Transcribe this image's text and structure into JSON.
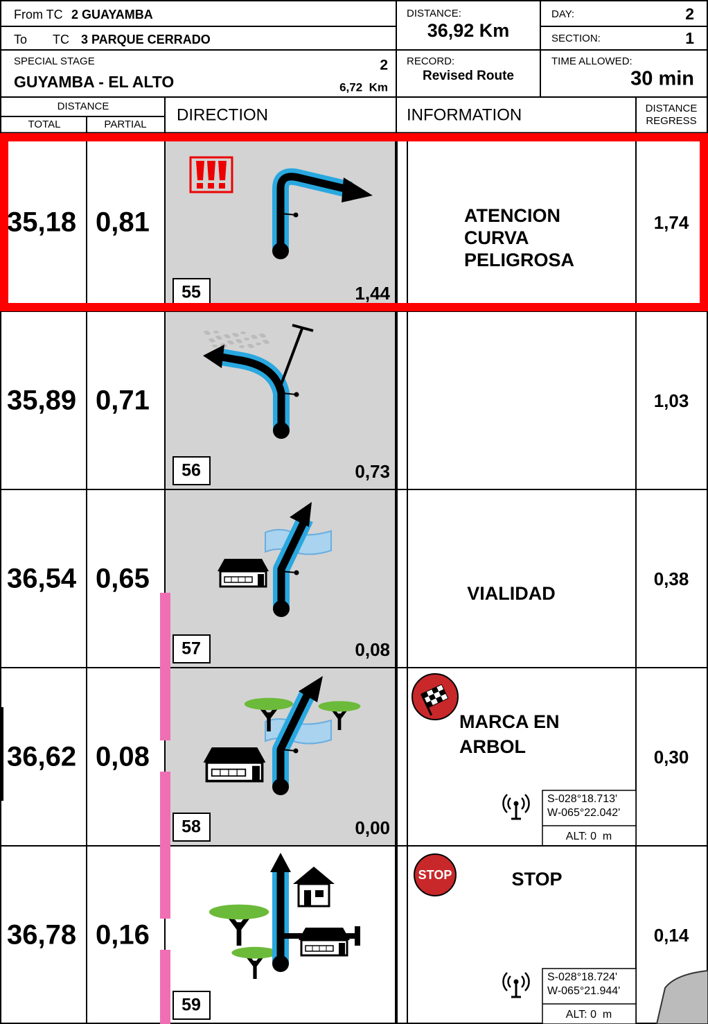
{
  "header": {
    "from_label": "From TC",
    "from_value": "2 GUAYAMBA",
    "to_label": "To",
    "to_tc": "TC",
    "to_value": "3 PARQUE CERRADO",
    "special_stage_label": "SPECIAL STAGE",
    "stage_number": "2",
    "stage_name": "GUYAMBA - EL ALTO",
    "stage_length": "6,72  Km",
    "distance_label": "DISTANCE:",
    "distance": "36,92 Km",
    "record_label": "RECORD:",
    "record": "Revised Route",
    "day_label": "DAY:",
    "day": "2",
    "section_label": "SECTION:",
    "section": "1",
    "time_allowed_label": "TIME ALLOWED:",
    "time_allowed": "30 min"
  },
  "columns": {
    "distance": "DISTANCE",
    "total": "TOTAL",
    "partial": "PARTIAL",
    "direction": "DIRECTION",
    "information": "INFORMATION",
    "regress": [
      "DISTANCE",
      "REGRESS"
    ]
  },
  "rows": [
    {
      "total": "35,18",
      "partial": "0,81",
      "number": "55",
      "direction_distance": "1,44",
      "info": [
        "ATENCION",
        "CURVA",
        "PELIGROSA"
      ],
      "regress": "1,74"
    },
    {
      "total": "35,89",
      "partial": "0,71",
      "number": "56",
      "direction_distance": "0,73",
      "info": [],
      "regress": "1,03"
    },
    {
      "total": "36,54",
      "partial": "0,65",
      "number": "57",
      "direction_distance": "0,08",
      "info": [
        "VIALIDAD"
      ],
      "regress": "0,38"
    },
    {
      "total": "36,62",
      "partial": "0,08",
      "number": "58",
      "direction_distance": "0,00",
      "info": [
        "MARCA EN",
        "ARBOL"
      ],
      "regress": "0,30",
      "gps": {
        "lat": "S-028°18.713'",
        "lon": "W-065°22.042'",
        "alt": "ALT: 0  m"
      }
    },
    {
      "total": "36,78",
      "partial": "0,16",
      "number": "59",
      "direction_distance": "",
      "info": [
        "STOP"
      ],
      "icon_text": "STOP",
      "regress": "0,14",
      "gps": {
        "lat": "S-028°18.724'",
        "lon": "W-065°21.944'",
        "alt": "ALT: 0  m"
      }
    }
  ]
}
